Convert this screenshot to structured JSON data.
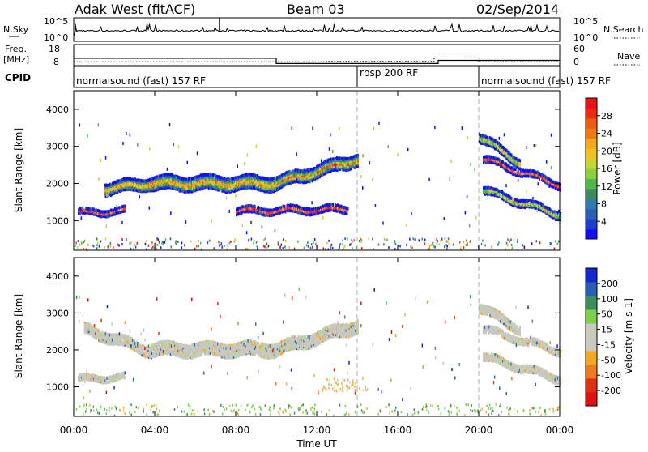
{
  "header": {
    "station": "Adak West (fitACF)",
    "beam": "Beam 03",
    "date": "02/Sep/2014"
  },
  "top_strip": {
    "nsky_label": "N.Sky",
    "nsky_ticks": [
      "10^5",
      "10^0"
    ],
    "nsearch_label": "N.Search",
    "nsearch_ticks": [
      "10^5",
      "10^0"
    ],
    "freq_label": "Freq.",
    "freq_unit": "[MHz]",
    "freq_ticks": [
      "18",
      "8"
    ],
    "nave_label": "Nave",
    "nave_ticks": [
      "60",
      "0"
    ],
    "cpid_label": "CPID",
    "cpid_segments": [
      {
        "label": "normalsound (fast) 157 RF",
        "start_hour": 0,
        "end_hour": 14
      },
      {
        "label": "rbsp 200 RF",
        "start_hour": 14,
        "end_hour": 20
      },
      {
        "label": "normalsound (fast) 157 RF",
        "start_hour": 20,
        "end_hour": 24
      }
    ],
    "freq_series_mhz": {
      "hours": [
        0,
        10,
        10,
        18,
        18,
        24
      ],
      "values": [
        11.5,
        11.5,
        9.0,
        9.0,
        10.5,
        10.5
      ]
    },
    "nave_series": {
      "hours": [
        0,
        12.5,
        12.5,
        17.8,
        17.8,
        20,
        20,
        24
      ],
      "values": [
        11,
        11,
        12,
        12,
        22,
        22,
        11,
        11
      ]
    }
  },
  "chart_data": [
    {
      "type": "heatmap",
      "name": "power",
      "ylabel": "Slant Range [km]",
      "ylim": [
        200,
        4500
      ],
      "yticks": [
        1000,
        2000,
        3000,
        4000
      ],
      "xlim": [
        0,
        24
      ],
      "colorbar_label": "Power [dB]",
      "colorbar_ticks": [
        "28",
        "24",
        "20",
        "16",
        "12",
        "8",
        "4"
      ],
      "bands": [
        {
          "x": [
            1.5,
            3.8
          ],
          "y_center": [
            1900,
            2050
          ],
          "width_km": 280
        },
        {
          "x": [
            3.8,
            10
          ],
          "y_center": [
            2050,
            2050
          ],
          "width_km": 340
        },
        {
          "x": [
            10,
            14
          ],
          "y_center": [
            2050,
            2700
          ],
          "width_km": 300
        },
        {
          "x": [
            0.2,
            2.5
          ],
          "y_center": [
            1250,
            1300
          ],
          "width_km": 120
        },
        {
          "x": [
            8.0,
            13.5
          ],
          "y_center": [
            1300,
            1350
          ],
          "width_km": 140
        },
        {
          "x": [
            20,
            22
          ],
          "y_center": [
            3300,
            2600
          ],
          "width_km": 200
        },
        {
          "x": [
            20.2,
            24
          ],
          "y_center": [
            1850,
            1200
          ],
          "width_km": 160
        },
        {
          "x": [
            20.2,
            24
          ],
          "y_center": [
            2700,
            2000
          ],
          "width_km": 140
        }
      ]
    },
    {
      "type": "heatmap",
      "name": "velocity",
      "ylabel": "Slant Range [km]",
      "ylim": [
        200,
        4500
      ],
      "yticks": [
        1000,
        2000,
        3000,
        4000
      ],
      "xlim": [
        0,
        24
      ],
      "xticks": [
        "00:00",
        "04:00",
        "08:00",
        "12:00",
        "16:00",
        "20:00",
        "00:00"
      ],
      "xlabel": "Time UT",
      "colorbar_label": "Velocity [m s-1]",
      "colorbar_ticks": [
        "200",
        "100",
        "50",
        "15",
        "-15",
        "-50",
        "-100",
        "-200"
      ],
      "bands": [
        {
          "x": [
            0.5,
            3.8
          ],
          "y_center": [
            2600,
            2000
          ],
          "width_km": 240
        },
        {
          "x": [
            3.8,
            10
          ],
          "y_center": [
            2050,
            2050
          ],
          "width_km": 320
        },
        {
          "x": [
            10,
            14
          ],
          "y_center": [
            2050,
            2700
          ],
          "width_km": 300
        },
        {
          "x": [
            0.2,
            2.5
          ],
          "y_center": [
            1250,
            1300
          ],
          "width_km": 120
        },
        {
          "x": [
            20,
            22
          ],
          "y_center": [
            3200,
            2600
          ],
          "width_km": 200
        },
        {
          "x": [
            20.2,
            24
          ],
          "y_center": [
            1850,
            1250
          ],
          "width_km": 160
        },
        {
          "x": [
            20.2,
            24
          ],
          "y_center": [
            2600,
            2000
          ],
          "width_km": 140
        }
      ]
    }
  ]
}
